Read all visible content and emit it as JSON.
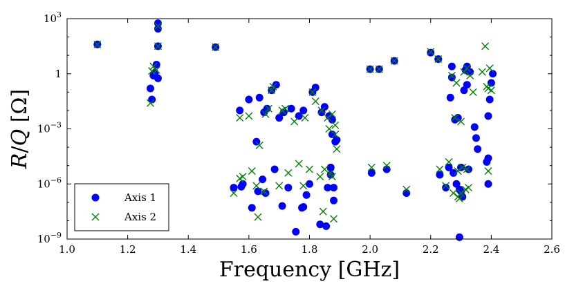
{
  "chart_data": {
    "type": "scatter",
    "title": "",
    "xlabel": "Frequency [GHz]",
    "ylabel": "R/Q [Ω]",
    "xlim": [
      1.0,
      2.6
    ],
    "ylim_log10": [
      -9,
      3
    ],
    "yscale": "log",
    "grid": false,
    "legend_position": "lower-left",
    "x_ticks": [
      1.0,
      1.2,
      1.4,
      1.6,
      1.8,
      2.0,
      2.2,
      2.4,
      2.6
    ],
    "x_tick_labels": [
      "1.0",
      "1.2",
      "1.4",
      "1.6",
      "1.8",
      "2.0",
      "2.2",
      "2.4",
      "2.6"
    ],
    "y_ticks": [
      {
        "exp": -9,
        "label_base": "10",
        "label_exp": "−9"
      },
      {
        "exp": -6,
        "label_base": "10",
        "label_exp": "−6"
      },
      {
        "exp": -3,
        "label_base": "10",
        "label_exp": "−3"
      },
      {
        "exp": 0,
        "label_base": "1",
        "label_exp": ""
      },
      {
        "exp": 3,
        "label_base": "10",
        "label_exp": "3"
      }
    ],
    "series": [
      {
        "name": "Axis 1",
        "marker": "circle",
        "color": "#0000ff",
        "points": [
          [
            1.1,
            1.6
          ],
          [
            1.275,
            -0.8
          ],
          [
            1.28,
            -1.4
          ],
          [
            1.285,
            -0.1
          ],
          [
            1.29,
            0.05
          ],
          [
            1.295,
            0.5
          ],
          [
            1.3,
            -0.25
          ],
          [
            1.3,
            2.75
          ],
          [
            1.3,
            2.45
          ],
          [
            1.3,
            1.5
          ],
          [
            1.49,
            1.45
          ],
          [
            1.55,
            -6.2
          ],
          [
            1.57,
            -2.0
          ],
          [
            1.575,
            -6.15
          ],
          [
            1.58,
            -6.0
          ],
          [
            1.6,
            -1.4
          ],
          [
            1.61,
            -7.3
          ],
          [
            1.625,
            -3.7
          ],
          [
            1.63,
            -6.4
          ],
          [
            1.635,
            -1.3
          ],
          [
            1.65,
            -2.1
          ],
          [
            1.645,
            -5.75
          ],
          [
            1.655,
            -6.5
          ],
          [
            1.66,
            -1.9
          ],
          [
            1.675,
            -0.9
          ],
          [
            1.685,
            -5.2
          ],
          [
            1.69,
            -0.6
          ],
          [
            1.7,
            -2.4
          ],
          [
            1.71,
            -7.2
          ],
          [
            1.715,
            -2.1
          ],
          [
            1.73,
            -6.2
          ],
          [
            1.74,
            -1.9
          ],
          [
            1.755,
            -8.6
          ],
          [
            1.765,
            -2.3
          ],
          [
            1.775,
            -7.3
          ],
          [
            1.78,
            -7.25
          ],
          [
            1.78,
            -2.0
          ],
          [
            1.79,
            -6.6
          ],
          [
            1.8,
            -6.0
          ],
          [
            1.81,
            -1.0
          ],
          [
            1.82,
            -0.75
          ],
          [
            1.835,
            -8.2
          ],
          [
            1.84,
            -2.1
          ],
          [
            1.85,
            -1.8
          ],
          [
            1.855,
            -8.3
          ],
          [
            1.86,
            -6.2
          ],
          [
            1.865,
            -2.3
          ],
          [
            1.87,
            -5.1
          ],
          [
            1.87,
            -5.5
          ],
          [
            1.875,
            -3.3
          ],
          [
            1.875,
            -2.5
          ],
          [
            1.88,
            -6.9
          ],
          [
            1.885,
            -3.7
          ],
          [
            1.88,
            -6.2
          ],
          [
            1.89,
            -3.6
          ],
          [
            2.0,
            0.25
          ],
          [
            2.005,
            -5.4
          ],
          [
            2.03,
            0.25
          ],
          [
            2.055,
            -5.2
          ],
          [
            2.08,
            0.7
          ],
          [
            2.12,
            -6.5
          ],
          [
            2.2,
            1.15
          ],
          [
            2.225,
            0.8
          ],
          [
            2.23,
            -5.5
          ],
          [
            2.25,
            -6.2
          ],
          [
            2.26,
            -5.1
          ],
          [
            2.265,
            -1.3
          ],
          [
            2.27,
            0.4
          ],
          [
            2.27,
            -0.2
          ],
          [
            2.275,
            -5.4
          ],
          [
            2.28,
            -2.5
          ],
          [
            2.285,
            -6.0
          ],
          [
            2.29,
            -2.4
          ],
          [
            2.295,
            -6.3
          ],
          [
            2.295,
            -8.9
          ],
          [
            2.3,
            -5.1
          ],
          [
            2.3,
            -6.4
          ],
          [
            2.305,
            -6.7
          ],
          [
            2.31,
            -0.9
          ],
          [
            2.315,
            0.2
          ],
          [
            2.32,
            0.4
          ],
          [
            2.32,
            -0.6
          ],
          [
            2.325,
            -5.2
          ],
          [
            2.33,
            0.1
          ],
          [
            2.345,
            -2.9
          ],
          [
            2.35,
            -3.5
          ],
          [
            2.355,
            -4.1
          ],
          [
            2.385,
            -4.8
          ],
          [
            2.39,
            -4.6
          ],
          [
            2.39,
            -6.0
          ],
          [
            2.39,
            -2.3
          ],
          [
            2.395,
            -1.4
          ],
          [
            2.4,
            -0.5
          ],
          [
            2.405,
            0.0
          ]
        ]
      },
      {
        "name": "Axis 2",
        "marker": "x",
        "color": "#008000",
        "points": [
          [
            1.1,
            1.6
          ],
          [
            1.275,
            -1.6
          ],
          [
            1.28,
            0.15
          ],
          [
            1.285,
            0.4
          ],
          [
            1.295,
            0.2
          ],
          [
            1.3,
            1.5
          ],
          [
            1.3,
            2.6
          ],
          [
            1.49,
            1.45
          ],
          [
            1.55,
            -6.5
          ],
          [
            1.57,
            -5.7
          ],
          [
            1.57,
            -2.4
          ],
          [
            1.58,
            -5.6
          ],
          [
            1.6,
            -2.3
          ],
          [
            1.61,
            -5.3
          ],
          [
            1.625,
            -6.1
          ],
          [
            1.63,
            -7.8
          ],
          [
            1.635,
            -3.9
          ],
          [
            1.65,
            -6.4
          ],
          [
            1.655,
            -2.2
          ],
          [
            1.665,
            -1.9
          ],
          [
            1.675,
            -0.9
          ],
          [
            1.68,
            -0.7
          ],
          [
            1.7,
            -6.1
          ],
          [
            1.71,
            -2.0
          ],
          [
            1.72,
            -1.9
          ],
          [
            1.73,
            -5.4
          ],
          [
            1.75,
            -2.6
          ],
          [
            1.765,
            -4.9
          ],
          [
            1.78,
            -6.1
          ],
          [
            1.785,
            -2.4
          ],
          [
            1.8,
            -5.2
          ],
          [
            1.81,
            -1.0
          ],
          [
            1.82,
            -1.5
          ],
          [
            1.835,
            -5.6
          ],
          [
            1.84,
            -2.0
          ],
          [
            1.845,
            -7.5
          ],
          [
            1.85,
            -5.2
          ],
          [
            1.86,
            -2.4
          ],
          [
            1.865,
            -3.0
          ],
          [
            1.87,
            -5.4
          ],
          [
            1.875,
            -2.2
          ],
          [
            1.875,
            -5.6
          ],
          [
            1.88,
            -7.9
          ],
          [
            1.885,
            -3.3
          ],
          [
            1.89,
            -4.1
          ],
          [
            1.885,
            -2.8
          ],
          [
            2.0,
            0.25
          ],
          [
            2.005,
            -5.1
          ],
          [
            2.03,
            0.25
          ],
          [
            2.055,
            -5.0
          ],
          [
            2.08,
            0.7
          ],
          [
            2.12,
            -6.3
          ],
          [
            2.2,
            1.2
          ],
          [
            2.225,
            0.8
          ],
          [
            2.23,
            -5.2
          ],
          [
            2.25,
            -6.1
          ],
          [
            2.26,
            -4.8
          ],
          [
            2.27,
            -0.1
          ],
          [
            2.275,
            -6.5
          ],
          [
            2.28,
            -2.4
          ],
          [
            2.285,
            -0.5
          ],
          [
            2.29,
            -6.7
          ],
          [
            2.29,
            -5.3
          ],
          [
            2.295,
            -6.8
          ],
          [
            2.3,
            -2.6
          ],
          [
            2.3,
            -6.5
          ],
          [
            2.305,
            -5.1
          ],
          [
            2.31,
            0.1
          ],
          [
            2.315,
            -6.3
          ],
          [
            2.32,
            0.3
          ],
          [
            2.32,
            -5.2
          ],
          [
            2.325,
            -6.2
          ],
          [
            2.33,
            -0.1
          ],
          [
            2.34,
            -1.0
          ],
          [
            2.37,
            0.1
          ],
          [
            2.38,
            1.5
          ],
          [
            2.385,
            -0.7
          ],
          [
            2.39,
            -5.3
          ],
          [
            2.39,
            -0.8
          ],
          [
            2.395,
            0.3
          ],
          [
            2.4,
            -0.9
          ]
        ]
      }
    ]
  }
}
